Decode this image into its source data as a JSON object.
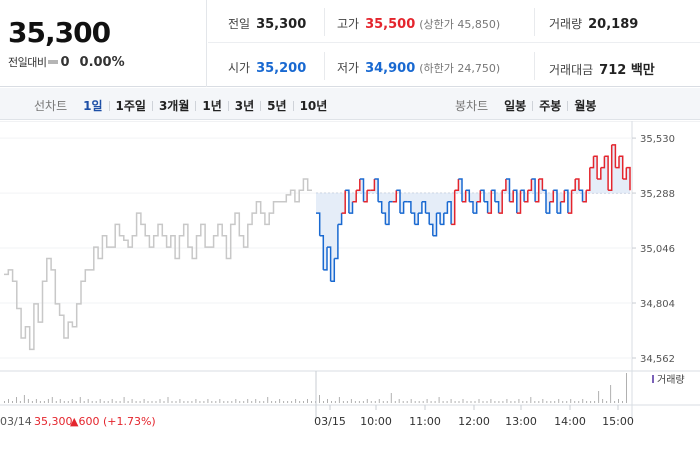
{
  "summary": {
    "price": "35,300",
    "change_label": "전일대비",
    "change_value": "0",
    "change_pct": "0.00%"
  },
  "stats": {
    "prev_close": {
      "label": "전일",
      "value": "35,300"
    },
    "high": {
      "label": "고가",
      "value": "35,500",
      "limit": "(상한가 45,850)"
    },
    "volume": {
      "label": "거래량",
      "value": "20,189"
    },
    "open": {
      "label": "시가",
      "value": "35,200"
    },
    "low": {
      "label": "저가",
      "value": "34,900",
      "limit": "(하한가 24,750)"
    },
    "trade_amount": {
      "label": "거래대금",
      "value": "712 백만"
    }
  },
  "period_bar": {
    "line_label": "선차트",
    "line_items": [
      "1일",
      "1주일",
      "3개월",
      "1년",
      "3년",
      "5년",
      "10년"
    ],
    "active_item": "1일",
    "candle_label": "봉차트",
    "candle_items": [
      "일봉",
      "주봉",
      "월봉"
    ]
  },
  "colors": {
    "up": "#e4252d",
    "down": "#1969d1",
    "prev_day_line": "#c8c8c8",
    "volume_bar": "#b0b0b0",
    "volume_legend": "#7b62b8"
  },
  "chart_data": {
    "type": "line",
    "reference_price": 35288,
    "y_ticks": [
      "35,530",
      "35,288",
      "35,046",
      "34,804",
      "34,562"
    ],
    "y_tick_values": [
      35530,
      35288,
      35046,
      34804,
      34562
    ],
    "ylim": [
      34540,
      35570
    ],
    "x_labels": [
      "03/15",
      "10:00",
      "11:00",
      "12:00",
      "13:00",
      "14:00",
      "15:00"
    ],
    "prev_day_label": "03/14",
    "prev_day_close": "35,300",
    "prev_day_change": "▲600 (+1.73%)",
    "volume_legend": "거래량",
    "series": [
      {
        "name": "03/14",
        "values": [
          34930,
          34950,
          34900,
          34780,
          34650,
          34700,
          34600,
          34800,
          34720,
          34900,
          35000,
          34950,
          34800,
          34750,
          34650,
          34720,
          34700,
          34800,
          34900,
          34950,
          34950,
          35050,
          35000,
          35100,
          35050,
          35050,
          35150,
          35100,
          35080,
          35050,
          35100,
          35200,
          35150,
          35100,
          35050,
          35100,
          35150,
          35100,
          35050,
          35100,
          35000,
          35100,
          35150,
          35050,
          35000,
          35100,
          35150,
          35050,
          35050,
          35100,
          35150,
          35100,
          35000,
          35150,
          35200,
          35100,
          35050,
          35150,
          35200,
          35250,
          35200,
          35150,
          35200,
          35250,
          35250,
          35250,
          35280,
          35300,
          35250,
          35300,
          35350,
          35300,
          35300
        ]
      },
      {
        "name": "03/15",
        "values": [
          35200,
          35100,
          34950,
          35050,
          34900,
          35000,
          35150,
          35200,
          35300,
          35200,
          35250,
          35300,
          35350,
          35250,
          35300,
          35300,
          35350,
          35250,
          35200,
          35150,
          35250,
          35250,
          35300,
          35200,
          35250,
          35250,
          35200,
          35150,
          35200,
          35250,
          35200,
          35150,
          35100,
          35200,
          35150,
          35200,
          35250,
          35150,
          35300,
          35350,
          35250,
          35300,
          35250,
          35200,
          35250,
          35300,
          35250,
          35200,
          35300,
          35250,
          35200,
          35300,
          35350,
          35250,
          35300,
          35200,
          35300,
          35250,
          35300,
          35350,
          35250,
          35350,
          35300,
          35200,
          35250,
          35300,
          35200,
          35250,
          35300,
          35200,
          35300,
          35350,
          35300,
          35250,
          35300,
          35400,
          35450,
          35350,
          35400,
          35450,
          35300,
          35500,
          35400,
          35450,
          35350,
          35400,
          35300
        ]
      }
    ],
    "volume": [
      1,
      2,
      1,
      3,
      1,
      4,
      2,
      1,
      2,
      1,
      1,
      2,
      3,
      1,
      2,
      1,
      1,
      2,
      1,
      3,
      1,
      2,
      1,
      1,
      2,
      1,
      1,
      2,
      1,
      1,
      3,
      1,
      2,
      1,
      1,
      2,
      1,
      1,
      1,
      2,
      1,
      3,
      1,
      1,
      2,
      1,
      1,
      1,
      2,
      1,
      1,
      2,
      1,
      1,
      2,
      1,
      1,
      1,
      2,
      1,
      1,
      2,
      1,
      2,
      1,
      1,
      3,
      1,
      1,
      2,
      1,
      1,
      1,
      2,
      1,
      1,
      2,
      1,
      1,
      4,
      1,
      2,
      1,
      1,
      3,
      1,
      1,
      2,
      1,
      1,
      1,
      2,
      1,
      1,
      2,
      1,
      1,
      5,
      1,
      2,
      1,
      1,
      2,
      1,
      1,
      1,
      2,
      1,
      1,
      3,
      1,
      1,
      2,
      1,
      1,
      2,
      1,
      1,
      1,
      2,
      1,
      1,
      2,
      1,
      1,
      1,
      2,
      1,
      1,
      2,
      1,
      1,
      3,
      1,
      1,
      2,
      1,
      1,
      1,
      2,
      1,
      1,
      2,
      1,
      1,
      2,
      1,
      1,
      1,
      6,
      2,
      1,
      9,
      1,
      2,
      1,
      15
    ]
  }
}
